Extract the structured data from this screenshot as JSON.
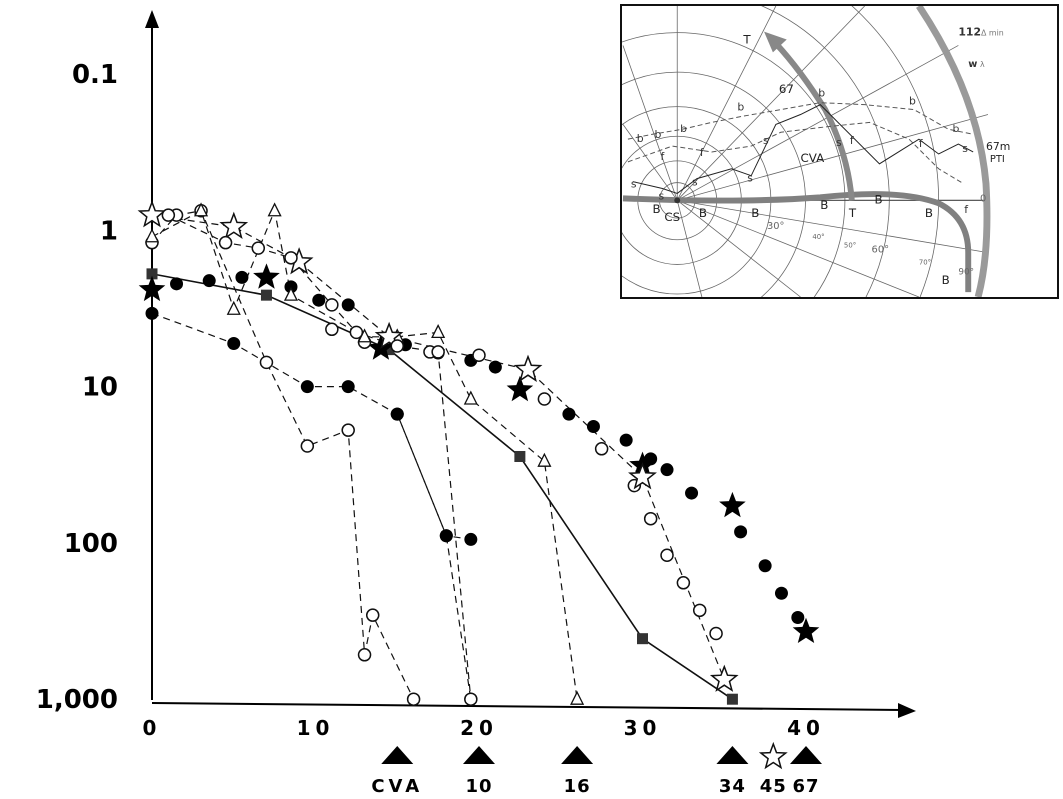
{
  "chart_data": [
    {
      "type": "scatter",
      "x_ticks": [
        "0",
        "10",
        "20",
        "30",
        "40"
      ],
      "y_ticks": [
        "0.1",
        "1",
        "10",
        "100",
        "1,000"
      ],
      "xlim": [
        0,
        46
      ],
      "ylim": [
        0.1,
        1000
      ],
      "y_scale": "log-reversed",
      "grid": false,
      "markers": [
        {
          "x": 15,
          "label": "CVA"
        },
        {
          "x": 20,
          "label": "10"
        },
        {
          "x": 26,
          "label": "16"
        },
        {
          "x": 35.5,
          "label": "34"
        },
        {
          "x": 38,
          "label": "45",
          "shape": "open-star"
        },
        {
          "x": 40,
          "label": "67"
        }
      ],
      "series": [
        {
          "shape": "filled-square",
          "line": "solid",
          "x": [
            0,
            7,
            14.5,
            22.5,
            30,
            35.5
          ],
          "y": [
            1.9,
            2.6,
            5.8,
            28,
            410,
            1000
          ]
        },
        {
          "shape": "filled-star",
          "line": "none",
          "x": [
            0,
            7,
            14,
            22.5,
            30,
            35.5,
            40
          ],
          "y": [
            2.4,
            2.0,
            5.7,
            10.5,
            32,
            58,
            370
          ]
        },
        {
          "shape": "filled-circle",
          "line": "none",
          "x": [
            1.5,
            3.5,
            5.5,
            8.5,
            10.2,
            12,
            15.5,
            17.5,
            19.5,
            21,
            24,
            25.5,
            27,
            29,
            30.5,
            31.5,
            33,
            36,
            37.5,
            38.5,
            39.5
          ],
          "y": [
            2.2,
            2.1,
            2.0,
            2.3,
            2.8,
            3.0,
            5.4,
            6.1,
            6.8,
            7.5,
            12,
            15,
            18,
            22,
            29,
            34,
            48,
            85,
            140,
            210,
            300
          ]
        },
        {
          "shape": "open-circle",
          "line": "none",
          "x": [
            11,
            13,
            17,
            20,
            24,
            27.5,
            29.5,
            30.5,
            31.5,
            32.5,
            33.5,
            34.5
          ],
          "y": [
            4.3,
            5.2,
            6.0,
            6.3,
            12,
            25,
            43,
            70,
            120,
            180,
            270,
            380
          ]
        },
        {
          "shape": "filled-circle",
          "line": "dashed",
          "x": [
            0,
            5,
            9.5,
            12,
            15,
            18,
            19.5
          ],
          "y": [
            3.4,
            5.3,
            10,
            10,
            15,
            90,
            95
          ]
        },
        {
          "shape": "filled-circle",
          "line": "dashed",
          "x": [
            15,
            18,
            19.5
          ],
          "y": [
            15,
            90,
            1000
          ]
        },
        {
          "shape": "open-circle",
          "line": "dashed",
          "x": [
            0,
            1.5,
            3,
            7,
            9.5,
            12,
            13,
            13.5,
            16
          ],
          "y": [
            1.2,
            0.8,
            0.75,
            7,
            24,
            19,
            520,
            290,
            1000
          ]
        },
        {
          "shape": "open-triangle",
          "line": "dashed",
          "x": [
            0,
            3,
            5,
            7.5,
            8.5,
            13,
            15,
            17.5,
            19.5,
            24,
            26
          ],
          "y": [
            1.1,
            0.75,
            3.2,
            0.75,
            2.6,
            4.8,
            4.8,
            4.5,
            12,
            30,
            1000
          ]
        },
        {
          "shape": "open-star",
          "line": "dashed",
          "x": [
            0,
            5,
            9,
            14.5,
            23,
            30,
            35
          ],
          "y": [
            0.8,
            0.95,
            1.6,
            4.8,
            7.8,
            38,
            750
          ]
        },
        {
          "shape": "open-circle",
          "line": "dashed",
          "x": [
            1,
            4.5,
            6.5,
            8.5,
            11,
            12.5,
            15,
            17.5,
            19.5
          ],
          "y": [
            0.8,
            1.2,
            1.3,
            1.5,
            3.0,
            4.5,
            5.5,
            6.0,
            1000
          ]
        }
      ]
    },
    {
      "type": "polar-diagram",
      "header_values": [
        "112",
        "w"
      ],
      "header_units": [
        "Δ min",
        "λ"
      ],
      "labels": {
        "T": "T",
        "cva": "CVA",
        "n67": "67",
        "n67m": "67m",
        "pti": "PTI",
        "cs": "CS",
        "ring30": "30°",
        "ring40": "40°",
        "ring50": "50°",
        "ring60": "60°",
        "ring70": "70°",
        "ring90": "90°",
        "zero": "0"
      },
      "letters": {
        "b": "b",
        "s": "s",
        "f": "f",
        "B": "B",
        "T": "T"
      }
    }
  ]
}
